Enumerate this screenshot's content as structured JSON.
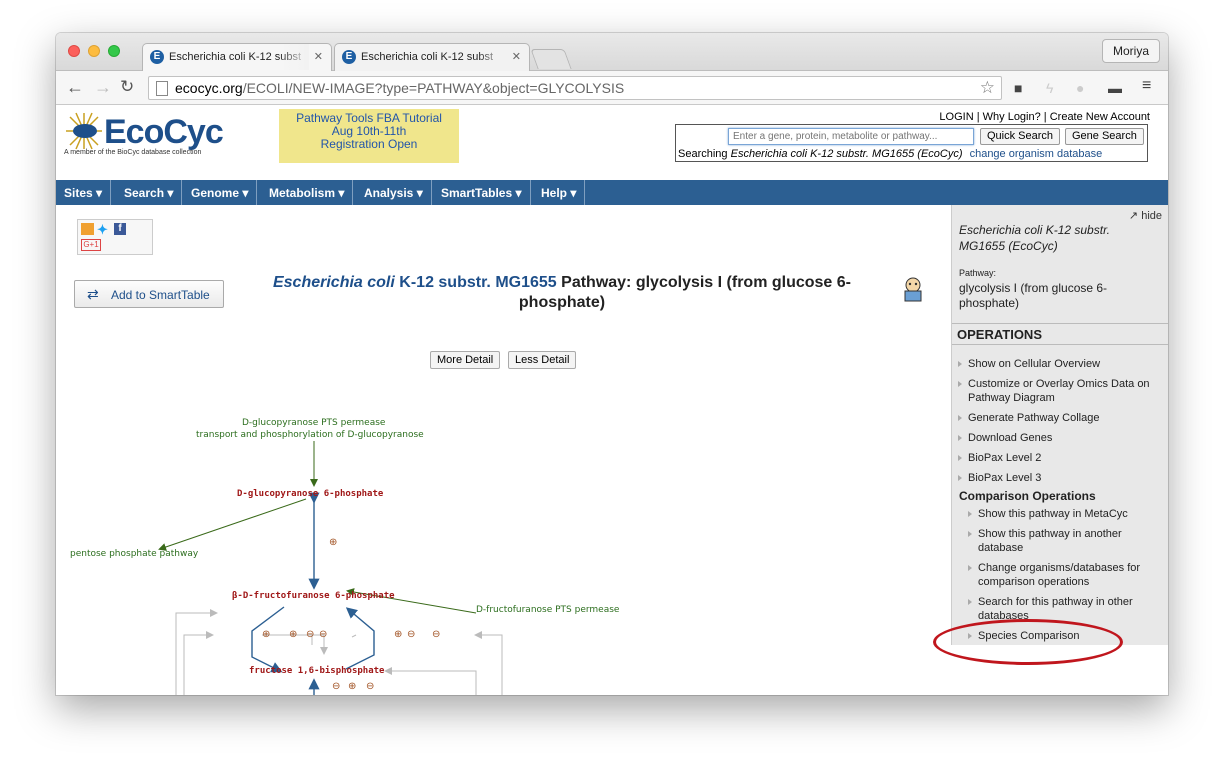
{
  "browser": {
    "tabs": [
      {
        "title": "Escherichia coli K-12 subst",
        "favicon": "E"
      },
      {
        "title": "Escherichia coli K-12 subst",
        "favicon": "E"
      }
    ],
    "profile": "Moriya",
    "url_host": "ecocyc.org",
    "url_path": "/ECOLI/NEW-IMAGE?type=PATHWAY&object=GLYCOLYSIS"
  },
  "header": {
    "logo_text": "EcoCyc",
    "logo_sub": "A member of the BioCyc database collection",
    "banner": [
      "Pathway Tools FBA Tutorial",
      "Aug 10th-11th",
      "Registration Open"
    ],
    "top_links": [
      "LOGIN",
      "Why Login?",
      "Create New Account"
    ],
    "search_placeholder": "Enter a gene, protein, metabolite or pathway...",
    "quick_search": "Quick Search",
    "gene_search": "Gene Search",
    "searching_prefix": "Searching",
    "searching_org": "Escherichia coli K-12 substr. MG1655 (EcoCyc)",
    "change_org": "change organism database"
  },
  "menu": [
    "Sites ▾",
    "Search ▾",
    "Genome ▾",
    "Metabolism ▾",
    "Analysis ▾",
    "SmartTables ▾",
    "Help ▾"
  ],
  "main": {
    "add_smarttable": "Add to SmartTable",
    "title_org": "Escherichia coli",
    "title_strain": "K-12 substr. MG1655",
    "title_rest": "Pathway: glycolysis I (from glucose 6-",
    "title_line2": "phosphate)",
    "more_detail": "More Detail",
    "less_detail": "Less Detail"
  },
  "diagram": {
    "enzyme1_line1": "D-glucopyranose PTS permease",
    "enzyme1_line2": "transport and phosphorylation of D-glucopyranose",
    "compound1": "D-glucopyranose 6-phosphate",
    "pentose": "pentose phosphate pathway",
    "enzyme2": "D-fructofuranose PTS permease",
    "compound2": "β-D-fructofuranose 6-phosphate",
    "compound3": "fructose 1,6-bisphosphate",
    "plus": "⊕",
    "minus": "⊖"
  },
  "sidebar": {
    "hide": "hide",
    "organism": "Escherichia coli K-12 substr. MG1655 (EcoCyc)",
    "pathway_label": "Pathway:",
    "pathway_name": "glycolysis I (from glucose 6-phosphate)",
    "operations_title": "OPERATIONS",
    "operations": [
      "Show on Cellular Overview",
      "Customize or Overlay Omics Data on Pathway Diagram",
      "Generate Pathway Collage",
      "Download Genes",
      "BioPax Level 2",
      "BioPax Level 3"
    ],
    "comparison_title": "Comparison Operations",
    "comparison_ops": [
      "Show this pathway in MetaCyc",
      "Show this pathway in another database",
      "Change organisms/databases for comparison operations",
      "Search for this pathway in other databases",
      "Species Comparison"
    ]
  }
}
